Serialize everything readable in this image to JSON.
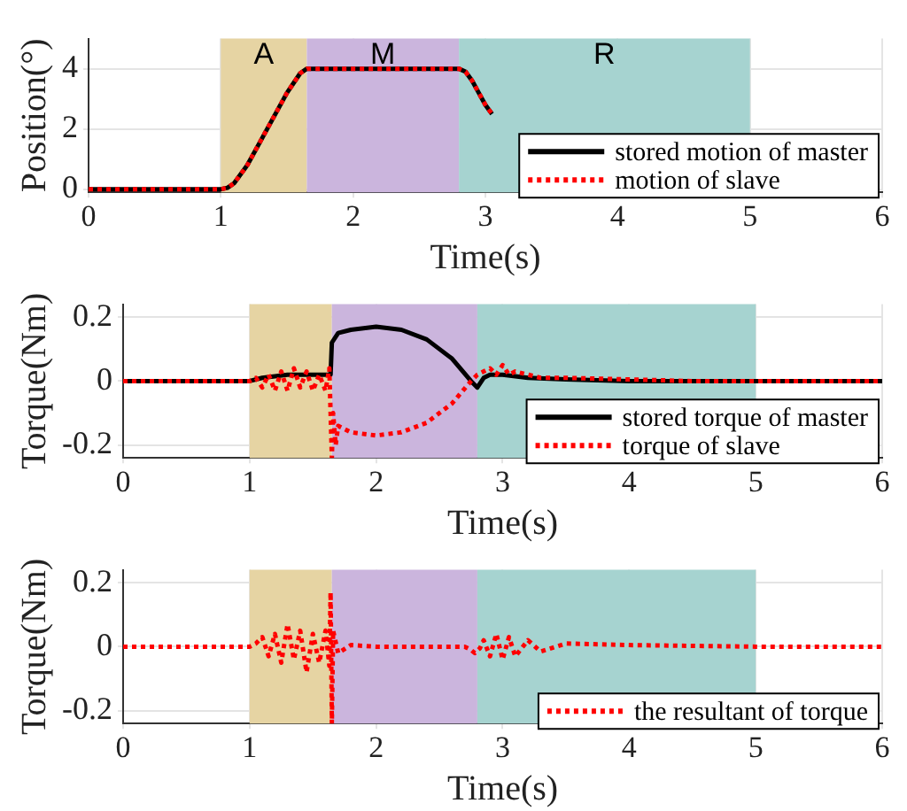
{
  "chart_data": [
    {
      "type": "line",
      "xlabel": "Time(s)",
      "ylabel": "Position(°)",
      "xlim": [
        0,
        6
      ],
      "xticks": [
        0,
        1,
        2,
        3,
        4,
        5,
        6
      ],
      "ylim": [
        -0.1,
        5
      ],
      "yticks": [
        0,
        2,
        4
      ],
      "grid": true,
      "legend": "bottom right",
      "marker": "none",
      "bands": [
        {
          "axis": "x",
          "from": 1,
          "to": 1.65,
          "label": "A",
          "color": "#e6d4a3"
        },
        {
          "axis": "x",
          "from": 1.65,
          "to": 2.8,
          "label": "M",
          "color": "#cbb5dd"
        },
        {
          "axis": "x",
          "from": 2.8,
          "to": 5,
          "label": "R",
          "color": "#a6d3d0"
        }
      ],
      "series": [
        {
          "name": "stored motion of master",
          "color": "#000000",
          "line_style": "solid",
          "x": [
            0,
            1,
            1.05,
            1.1,
            1.2,
            1.3,
            1.4,
            1.5,
            1.6,
            1.65,
            2,
            2.5,
            2.8,
            2.85,
            2.9,
            2.95,
            3,
            3.05
          ],
          "values": [
            0,
            0,
            0.05,
            0.2,
            0.8,
            1.6,
            2.4,
            3.2,
            3.85,
            4,
            4,
            4,
            4,
            3.9,
            3.6,
            3.2,
            2.8,
            2.5
          ]
        },
        {
          "name": "motion of slave",
          "color": "#ff0000",
          "line_style": "dotted",
          "x": [
            0,
            1,
            1.05,
            1.1,
            1.2,
            1.3,
            1.4,
            1.5,
            1.6,
            1.65,
            2,
            2.5,
            2.8,
            2.85,
            2.9,
            2.95,
            3,
            3.05
          ],
          "values": [
            0,
            0,
            0.05,
            0.2,
            0.8,
            1.6,
            2.4,
            3.2,
            3.85,
            4,
            4,
            4,
            4,
            3.9,
            3.6,
            3.2,
            2.8,
            2.5
          ]
        }
      ]
    },
    {
      "type": "line",
      "xlabel": "Time(s)",
      "ylabel": "Torque(Nm)",
      "xlim": [
        0,
        6
      ],
      "xticks": [
        0,
        1,
        2,
        3,
        4,
        5,
        6
      ],
      "ylim": [
        -0.24,
        0.24
      ],
      "yticks": [
        -0.2,
        0,
        0.2
      ],
      "grid": true,
      "legend": "bottom right",
      "marker": "none",
      "bands": [
        {
          "axis": "x",
          "from": 1,
          "to": 1.65,
          "color": "#e6d4a3"
        },
        {
          "axis": "x",
          "from": 1.65,
          "to": 2.8,
          "color": "#cbb5dd"
        },
        {
          "axis": "x",
          "from": 2.8,
          "to": 5,
          "color": "#a6d3d0"
        }
      ],
      "series": [
        {
          "name": "stored torque of master",
          "color": "#000000",
          "line_style": "solid",
          "x": [
            0,
            0.5,
            1,
            1.1,
            1.2,
            1.3,
            1.4,
            1.5,
            1.6,
            1.64,
            1.65,
            1.7,
            1.8,
            2,
            2.2,
            2.4,
            2.6,
            2.75,
            2.8,
            2.85,
            2.9,
            3,
            3.2,
            3.5,
            4,
            5,
            6
          ],
          "values": [
            0,
            0,
            0,
            0.01,
            0.015,
            0.02,
            0.02,
            0.02,
            0.02,
            0.02,
            0.12,
            0.15,
            0.16,
            0.17,
            0.16,
            0.13,
            0.07,
            0,
            -0.02,
            0.01,
            0.02,
            0.02,
            0.01,
            0.005,
            0,
            0,
            0
          ]
        },
        {
          "name": "torque of slave",
          "color": "#ff0000",
          "line_style": "dotted",
          "x": [
            0,
            0.5,
            1,
            1.05,
            1.1,
            1.15,
            1.2,
            1.25,
            1.3,
            1.35,
            1.4,
            1.45,
            1.5,
            1.55,
            1.6,
            1.63,
            1.65,
            1.66,
            1.68,
            1.7,
            1.75,
            1.8,
            2,
            2.2,
            2.4,
            2.6,
            2.75,
            2.8,
            2.85,
            2.9,
            2.95,
            3,
            3.05,
            3.1,
            3.2,
            3.3,
            3.5,
            4,
            4.5,
            5,
            5.5,
            6
          ],
          "values": [
            0,
            0,
            0,
            0.01,
            -0.02,
            0.02,
            -0.03,
            0.03,
            -0.03,
            0.04,
            -0.02,
            0.03,
            -0.03,
            0.02,
            -0.03,
            0.04,
            -0.24,
            -0.1,
            -0.2,
            -0.14,
            -0.15,
            -0.16,
            -0.17,
            -0.16,
            -0.13,
            -0.07,
            0,
            0.02,
            0.03,
            0.04,
            0.02,
            0.05,
            0.02,
            0.03,
            0.02,
            0.01,
            0.01,
            0.005,
            0,
            0,
            0,
            0
          ]
        }
      ]
    },
    {
      "type": "line",
      "xlabel": "Time(s)",
      "ylabel": "Torque(Nm)",
      "xlim": [
        0,
        6
      ],
      "xticks": [
        0,
        1,
        2,
        3,
        4,
        5,
        6
      ],
      "ylim": [
        -0.24,
        0.24
      ],
      "yticks": [
        -0.2,
        0,
        0.2
      ],
      "grid": true,
      "legend": "bottom right",
      "marker": "none",
      "bands": [
        {
          "axis": "x",
          "from": 1,
          "to": 1.65,
          "color": "#e6d4a3"
        },
        {
          "axis": "x",
          "from": 1.65,
          "to": 2.8,
          "color": "#cbb5dd"
        },
        {
          "axis": "x",
          "from": 2.8,
          "to": 5,
          "color": "#a6d3d0"
        }
      ],
      "series": [
        {
          "name": "the resultant of torque",
          "color": "#ff0000",
          "line_style": "dotted",
          "x": [
            0,
            0.5,
            1,
            1.05,
            1.1,
            1.15,
            1.2,
            1.25,
            1.3,
            1.35,
            1.4,
            1.45,
            1.5,
            1.55,
            1.6,
            1.63,
            1.64,
            1.65,
            1.66,
            1.7,
            1.8,
            2,
            2.5,
            2.7,
            2.75,
            2.78,
            2.82,
            2.85,
            2.9,
            2.95,
            3,
            3.05,
            3.1,
            3.2,
            3.3,
            3.5,
            4,
            5,
            6
          ],
          "values": [
            0,
            0,
            0,
            0.01,
            0.03,
            -0.03,
            0.04,
            -0.05,
            0.07,
            -0.04,
            0.05,
            -0.08,
            0.04,
            -0.05,
            0.05,
            -0.06,
            0.17,
            -0.24,
            0.05,
            -0.02,
            0.005,
            0,
            0,
            0,
            -0.01,
            -0.02,
            -0.005,
            0.02,
            -0.03,
            0.04,
            -0.04,
            0.03,
            -0.03,
            0.02,
            -0.015,
            0.01,
            0.005,
            0,
            0
          ]
        }
      ]
    }
  ]
}
